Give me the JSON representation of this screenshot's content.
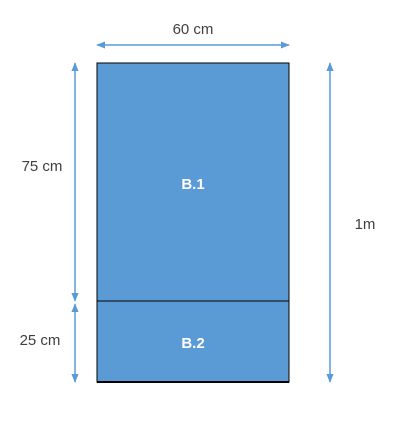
{
  "dimensions": {
    "width": "60 cm",
    "upper_height": "75 cm",
    "lower_height": "25 cm",
    "total_height": "1m"
  },
  "parts": {
    "upper": "B.1",
    "lower": "B.2"
  },
  "colors": {
    "fill": "#5b9bd5",
    "outline": "#000000",
    "arrow": "#5b9bd5",
    "text": "#404040"
  }
}
